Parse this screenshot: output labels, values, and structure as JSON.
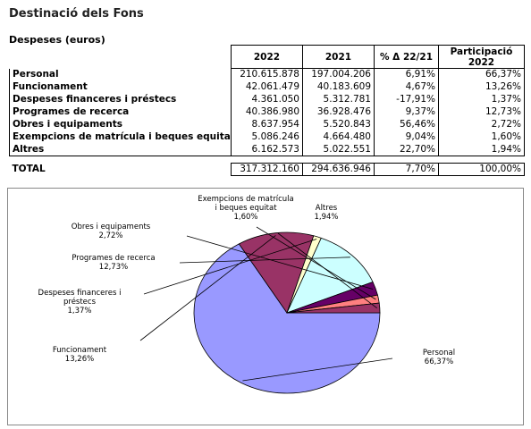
{
  "title": "Destinació dels Fons",
  "table": {
    "caption": "Despeses (euros)",
    "headers": [
      "2022",
      "2021",
      "% Δ 22/21",
      "Participació 2022"
    ],
    "rows": [
      {
        "label": "Personal",
        "v2022": "210.615.878",
        "v2021": "197.004.206",
        "delta": "6,91%",
        "share": "66,37%"
      },
      {
        "label": "Funcionament",
        "v2022": "42.061.479",
        "v2021": "40.183.609",
        "delta": "4,67%",
        "share": "13,26%"
      },
      {
        "label": "Despeses financeres i préstecs",
        "v2022": "4.361.050",
        "v2021": "5.312.781",
        "delta": "-17,91%",
        "share": "1,37%"
      },
      {
        "label": "Programes de recerca",
        "v2022": "40.386.980",
        "v2021": "36.928.476",
        "delta": "9,37%",
        "share": "12,73%"
      },
      {
        "label": "Obres i equipaments",
        "v2022": "8.637.954",
        "v2021": "5.520.843",
        "delta": "56,46%",
        "share": "2,72%"
      },
      {
        "label": "Exempcions de matrícula i beques equitat",
        "v2022": "5.086.246",
        "v2021": "4.664.480",
        "delta": "9,04%",
        "share": "1,60%"
      },
      {
        "label": "Altres",
        "v2022": "6.162.573",
        "v2021": "5.022.551",
        "delta": "22,70%",
        "share": "1,94%"
      }
    ],
    "total": {
      "label": "TOTAL",
      "v2022": "317.312.160",
      "v2021": "294.636.946",
      "delta": "7,70%",
      "share": "100,00%"
    }
  },
  "chart_data": {
    "type": "pie",
    "start_angle_deg": 0,
    "direction": "clockwise",
    "slices": [
      {
        "name": "Personal",
        "label_lines": [
          "Personal",
          "66,37%"
        ],
        "value": 66.37,
        "color": "#9999FF"
      },
      {
        "name": "Funcionament",
        "label_lines": [
          "Funcionament",
          "13,26%"
        ],
        "value": 13.26,
        "color": "#993366"
      },
      {
        "name": "Despeses financeres i préstecs",
        "label_lines": [
          "Despeses financeres i",
          "préstecs",
          "1,37%"
        ],
        "value": 1.37,
        "color": "#FFFFCC"
      },
      {
        "name": "Programes de recerca",
        "label_lines": [
          "Programes de recerca",
          "12,73%"
        ],
        "value": 12.73,
        "color": "#CCFFFF"
      },
      {
        "name": "Obres i equipaments",
        "label_lines": [
          "Obres i equipaments",
          "2,72%"
        ],
        "value": 2.72,
        "color": "#660066"
      },
      {
        "name": "Exempcions de matrícula i beques equitat",
        "label_lines": [
          "Exempcions de matrícula",
          "i beques equitat",
          "1,60%"
        ],
        "value": 1.6,
        "color": "#FF8080"
      },
      {
        "name": "Altres",
        "label_lines": [
          "Altres",
          "1,94%"
        ],
        "value": 1.94,
        "color": "#993366"
      }
    ]
  }
}
